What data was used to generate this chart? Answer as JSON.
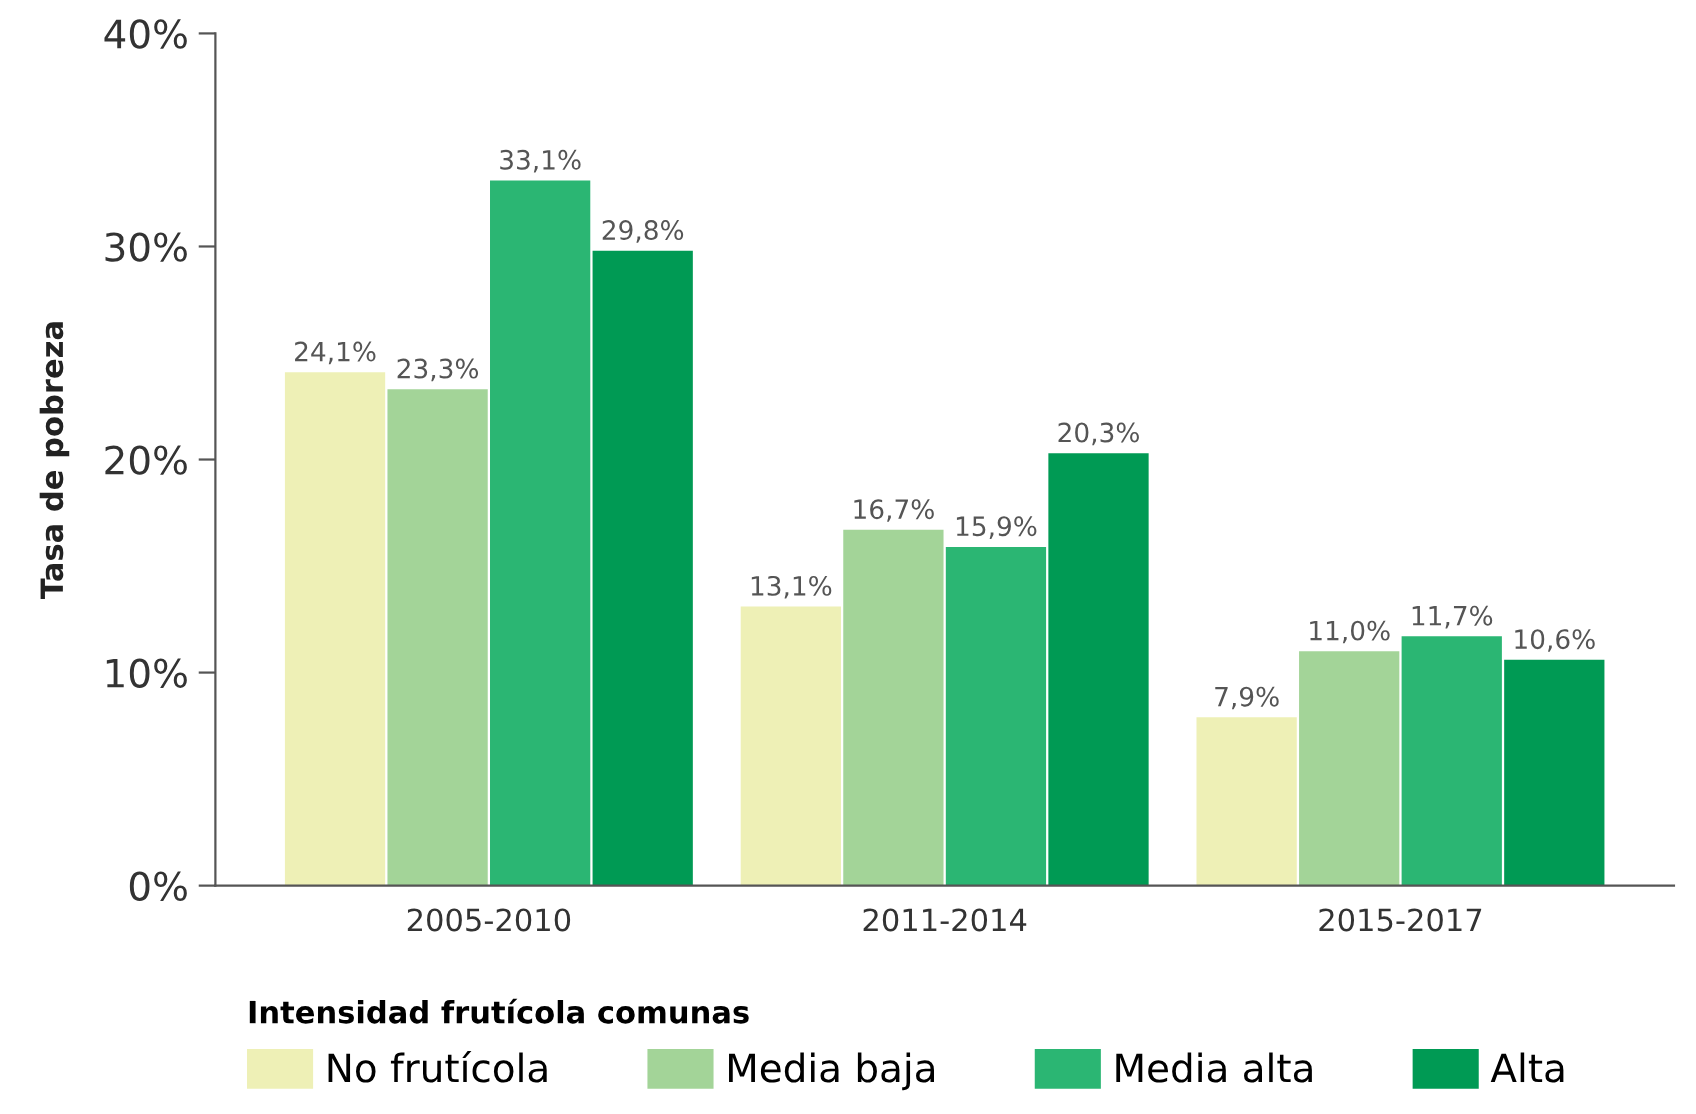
{
  "chart_data": {
    "type": "bar",
    "ylabel": "Tasa de pobreza",
    "legend_title": "Intensidad frutícola comunas",
    "categories": [
      "2005-2010",
      "2011-2014",
      "2015-2017"
    ],
    "series": [
      {
        "name": "No frutícola",
        "color": "#eef0b6",
        "values": [
          24.1,
          13.1,
          7.9
        ],
        "value_labels": [
          "24,1%",
          "13,1%",
          "7,9%"
        ]
      },
      {
        "name": "Media baja",
        "color": "#a3d498",
        "values": [
          23.3,
          16.7,
          11.0
        ],
        "value_labels": [
          "23,3%",
          "16,7%",
          "11,0%"
        ]
      },
      {
        "name": "Media alta",
        "color": "#2bb673",
        "values": [
          33.1,
          15.9,
          11.7
        ],
        "value_labels": [
          "33,1%",
          "15,9%",
          "11,7%"
        ]
      },
      {
        "name": "Alta",
        "color": "#009a54",
        "values": [
          29.8,
          20.3,
          10.6
        ],
        "value_labels": [
          "29,8%",
          "20,3%",
          "10,6%"
        ]
      }
    ],
    "ylim": [
      0,
      40
    ],
    "yticks": [
      {
        "value": 0,
        "label": "0%"
      },
      {
        "value": 10,
        "label": "10%"
      },
      {
        "value": 20,
        "label": "20%"
      },
      {
        "value": 30,
        "label": "30%"
      },
      {
        "value": 40,
        "label": "40%"
      }
    ],
    "grid": false,
    "legend": "bottom"
  }
}
